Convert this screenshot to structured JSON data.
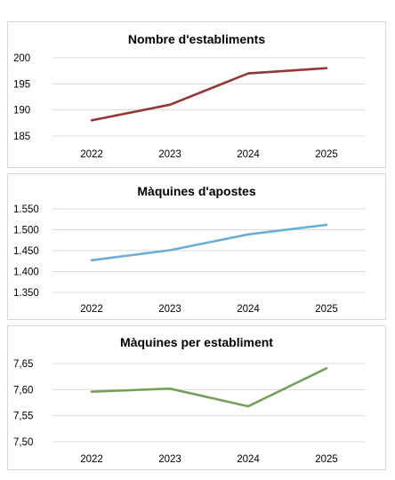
{
  "chart_data": [
    {
      "type": "line",
      "title": "Nombre d'establiments",
      "categories": [
        "2022",
        "2023",
        "2024",
        "2025"
      ],
      "series": [
        {
          "values": [
            188,
            191,
            197,
            198
          ]
        }
      ],
      "ylim": [
        185,
        200
      ],
      "yticks": [
        185,
        190,
        195,
        200
      ],
      "ytick_labels": [
        "185",
        "190",
        "195",
        "200"
      ],
      "grid": true,
      "color": "#943634"
    },
    {
      "type": "line",
      "title": "Màquines d'apostes",
      "categories": [
        "2022",
        "2023",
        "2024",
        "2025"
      ],
      "series": [
        {
          "values": [
            1427,
            1451,
            1489,
            1512
          ]
        }
      ],
      "ylim": [
        1350,
        1550
      ],
      "yticks": [
        1350,
        1400,
        1450,
        1500,
        1550
      ],
      "ytick_labels": [
        "1.350",
        "1.400",
        "1.450",
        "1.500",
        "1.550"
      ],
      "grid": true,
      "color": "#6aaed6"
    },
    {
      "type": "line",
      "title": "Màquines per establiment",
      "categories": [
        "2022",
        "2023",
        "2024",
        "2025"
      ],
      "series": [
        {
          "values": [
            7.596,
            7.602,
            7.568,
            7.641
          ]
        }
      ],
      "ylim": [
        7.5,
        7.65
      ],
      "yticks": [
        7.5,
        7.55,
        7.6,
        7.65
      ],
      "ytick_labels": [
        "7,50",
        "7,55",
        "7,60",
        "7,65"
      ],
      "grid": true,
      "color": "#76a05a"
    }
  ]
}
